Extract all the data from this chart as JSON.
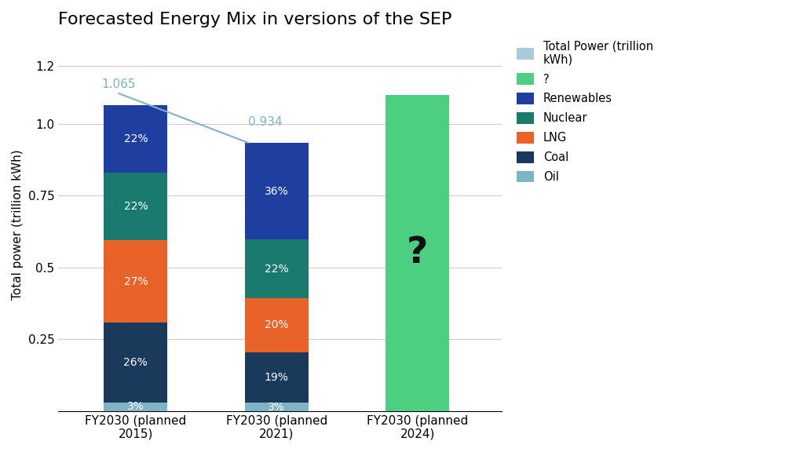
{
  "title": "Forecasted Energy Mix in versions of the SEP",
  "ylabel": "Total power (trillion kWh)",
  "categories": [
    "FY2030 (planned\n2015)",
    "FY2030 (planned\n2021)",
    "FY2030 (planned\n2024)"
  ],
  "total_values": [
    1.065,
    0.934,
    1.1
  ],
  "total_labels": [
    "1.065",
    "0.934",
    null
  ],
  "segments": {
    "Oil": [
      0.03,
      0.028,
      0.0
    ],
    "Coal": [
      0.277,
      0.177,
      0.0
    ],
    "LNG": [
      0.288,
      0.187,
      0.0
    ],
    "Nuclear": [
      0.234,
      0.205,
      0.0
    ],
    "Renewables": [
      0.234,
      0.336,
      0.0
    ],
    "unknown": [
      0.0,
      0.0,
      1.1
    ]
  },
  "segment_labels": {
    "Oil": [
      "3%",
      "3%",
      null
    ],
    "Coal": [
      "26%",
      "19%",
      null
    ],
    "LNG": [
      "27%",
      "20%",
      null
    ],
    "Nuclear": [
      "22%",
      "22%",
      null
    ],
    "Renewables": [
      "22%",
      "36%",
      null
    ],
    "unknown": [
      null,
      null,
      "?"
    ]
  },
  "colors": {
    "Oil": "#7fb3c8",
    "Coal": "#1a3a5c",
    "LNG": "#e8622a",
    "Nuclear": "#1a7a6e",
    "Renewables": "#1f3fa0",
    "unknown": "#4dcf82"
  },
  "legend_items": [
    {
      "label": "Total Power (trillion\nkWh)",
      "color": "#a8cdd8",
      "type": "line"
    },
    {
      "label": "?",
      "color": "#4dcf82",
      "type": "patch"
    },
    {
      "label": "Renewables",
      "color": "#1f3fa0",
      "type": "patch"
    },
    {
      "label": "Nuclear",
      "color": "#1a7a6e",
      "type": "patch"
    },
    {
      "label": "LNG",
      "color": "#e8622a",
      "type": "patch"
    },
    {
      "label": "Coal",
      "color": "#1a3a5c",
      "type": "patch"
    },
    {
      "label": "Oil",
      "color": "#7fb3c8",
      "type": "patch"
    }
  ],
  "ylim": [
    0,
    1.3
  ],
  "yticks": [
    0.25,
    0.5,
    0.75,
    1.0,
    1.2
  ],
  "background_color": "#ffffff",
  "annotation_color": "#7fb3c8",
  "bar_width": 0.45
}
